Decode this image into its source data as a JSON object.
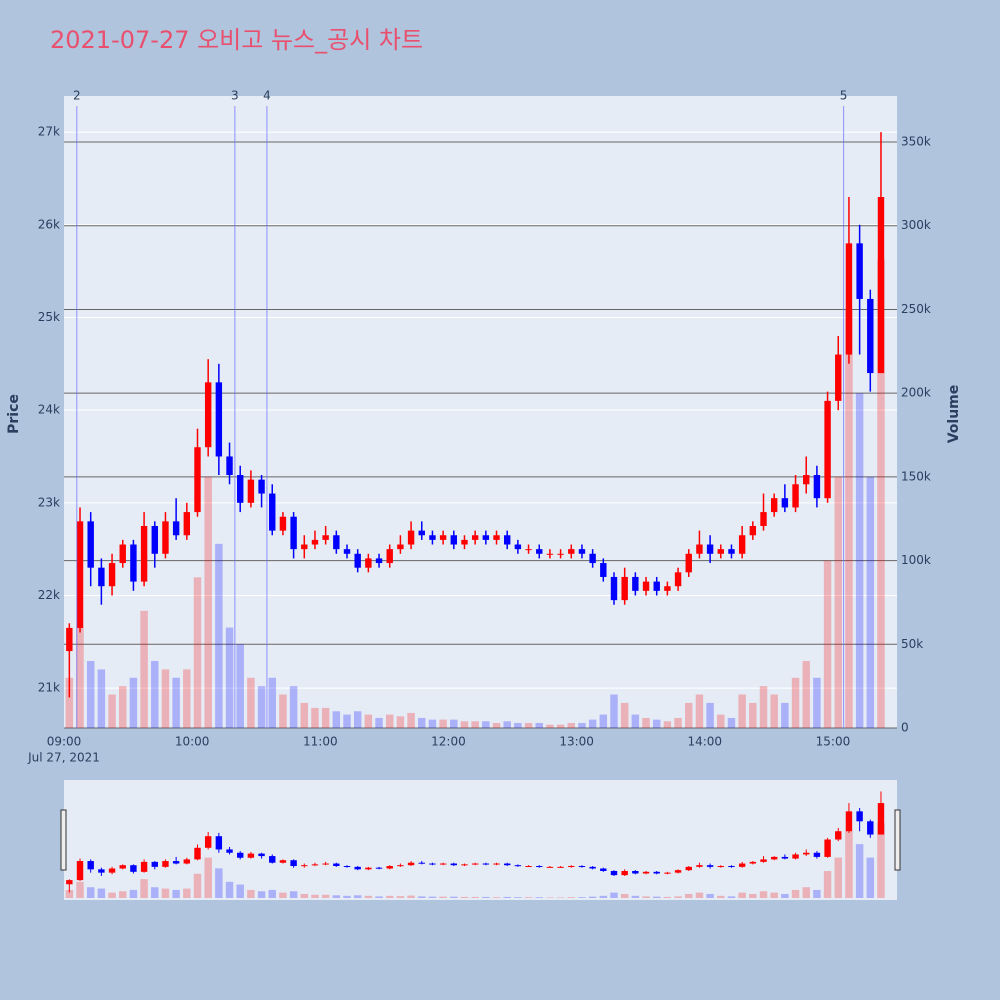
{
  "chart_data": {
    "type": "candlestick",
    "title": "2021-07-27 오비고 뉴스_공시 차트",
    "y_title": "Price",
    "y2_title": "Volume",
    "x_date": "Jul 27, 2021",
    "x": [
      "09:00",
      "09:05",
      "09:10",
      "09:15",
      "09:20",
      "09:25",
      "09:30",
      "09:35",
      "09:40",
      "09:45",
      "09:50",
      "09:55",
      "10:00",
      "10:05",
      "10:10",
      "10:15",
      "10:20",
      "10:25",
      "10:30",
      "10:35",
      "10:40",
      "10:45",
      "10:50",
      "10:55",
      "11:00",
      "11:05",
      "11:10",
      "11:15",
      "11:20",
      "11:25",
      "11:30",
      "11:35",
      "11:40",
      "11:45",
      "11:50",
      "11:55",
      "12:00",
      "12:05",
      "12:10",
      "12:15",
      "12:20",
      "12:25",
      "12:30",
      "12:35",
      "12:40",
      "12:45",
      "12:50",
      "12:55",
      "13:00",
      "13:05",
      "13:10",
      "13:15",
      "13:20",
      "13:25",
      "13:30",
      "13:35",
      "13:40",
      "13:45",
      "13:50",
      "13:55",
      "14:00",
      "14:05",
      "14:10",
      "14:15",
      "14:20",
      "14:25",
      "14:30",
      "14:35",
      "14:40",
      "14:45",
      "14:50",
      "14:55",
      "15:00",
      "15:05",
      "15:10",
      "15:15",
      "15:20"
    ],
    "open": [
      21400,
      21650,
      22800,
      22300,
      22100,
      22350,
      22550,
      22150,
      22750,
      22450,
      22800,
      22650,
      22900,
      23600,
      24300,
      23500,
      23300,
      23000,
      23250,
      23100,
      22700,
      22850,
      22500,
      22550,
      22600,
      22650,
      22500,
      22450,
      22300,
      22400,
      22350,
      22500,
      22550,
      22700,
      22650,
      22600,
      22650,
      22550,
      22600,
      22650,
      22600,
      22650,
      22550,
      22500,
      22500,
      22450,
      22450,
      22450,
      22500,
      22450,
      22350,
      22200,
      21950,
      22200,
      22050,
      22150,
      22050,
      22100,
      22250,
      22450,
      22550,
      22450,
      22500,
      22450,
      22650,
      22750,
      22900,
      23050,
      22950,
      23200,
      23300,
      23050,
      24100,
      24600,
      25800,
      25200,
      24400
    ],
    "high": [
      21700,
      22950,
      22900,
      22400,
      22450,
      22600,
      22600,
      22900,
      22800,
      22900,
      23050,
      23000,
      23800,
      24550,
      24500,
      23650,
      23400,
      23350,
      23300,
      23200,
      22900,
      22900,
      22650,
      22700,
      22750,
      22700,
      22550,
      22500,
      22450,
      22450,
      22550,
      22650,
      22800,
      22800,
      22700,
      22700,
      22700,
      22650,
      22700,
      22700,
      22700,
      22700,
      22600,
      22550,
      22550,
      22500,
      22500,
      22550,
      22550,
      22500,
      22400,
      22250,
      22300,
      22250,
      22200,
      22200,
      22150,
      22300,
      22500,
      22700,
      22650,
      22550,
      22550,
      22750,
      22800,
      23100,
      23100,
      23200,
      23300,
      23500,
      23400,
      24200,
      24800,
      26300,
      26000,
      25300,
      27000
    ],
    "low": [
      20900,
      21600,
      22100,
      21900,
      22000,
      22300,
      22050,
      22100,
      22300,
      22400,
      22600,
      22600,
      22850,
      23500,
      23300,
      23200,
      22900,
      22950,
      22950,
      22650,
      22650,
      22400,
      22400,
      22500,
      22550,
      22450,
      22400,
      22250,
      22250,
      22300,
      22300,
      22450,
      22500,
      22600,
      22550,
      22550,
      22500,
      22500,
      22550,
      22550,
      22550,
      22500,
      22450,
      22450,
      22400,
      22400,
      22400,
      22400,
      22400,
      22300,
      22150,
      21900,
      21900,
      22000,
      22000,
      22000,
      22000,
      22050,
      22200,
      22400,
      22350,
      22400,
      22400,
      22400,
      22600,
      22700,
      22850,
      22900,
      22900,
      23100,
      22950,
      23000,
      24000,
      24500,
      24600,
      24200,
      24400
    ],
    "close": [
      21650,
      22800,
      22300,
      22100,
      22350,
      22550,
      22150,
      22750,
      22450,
      22800,
      22650,
      22900,
      23600,
      24300,
      23500,
      23300,
      23000,
      23250,
      23100,
      22700,
      22850,
      22500,
      22550,
      22600,
      22650,
      22500,
      22450,
      22300,
      22400,
      22350,
      22500,
      22550,
      22700,
      22650,
      22600,
      22650,
      22550,
      22600,
      22650,
      22600,
      22650,
      22550,
      22500,
      22500,
      22450,
      22450,
      22450,
      22500,
      22450,
      22350,
      22200,
      21950,
      22200,
      22050,
      22150,
      22050,
      22100,
      22250,
      22450,
      22550,
      22450,
      22500,
      22450,
      22650,
      22750,
      22900,
      23050,
      22950,
      23200,
      23300,
      23050,
      24100,
      24600,
      25800,
      25200,
      24400,
      26300
    ],
    "volume": [
      30000,
      60000,
      40000,
      35000,
      20000,
      25000,
      30000,
      70000,
      40000,
      35000,
      30000,
      35000,
      90000,
      150000,
      110000,
      60000,
      50000,
      30000,
      25000,
      30000,
      20000,
      25000,
      15000,
      12000,
      12000,
      10000,
      8000,
      10000,
      8000,
      6000,
      8000,
      7000,
      9000,
      6000,
      5000,
      5000,
      5000,
      4000,
      4000,
      4000,
      3000,
      4000,
      3000,
      3000,
      3000,
      2000,
      2000,
      3000,
      3000,
      5000,
      8000,
      20000,
      15000,
      8000,
      6000,
      5000,
      4000,
      6000,
      15000,
      20000,
      15000,
      8000,
      6000,
      20000,
      15000,
      25000,
      20000,
      15000,
      30000,
      40000,
      30000,
      100000,
      150000,
      250000,
      200000,
      150000,
      280000
    ],
    "up_color": "#ff0000",
    "down_color": "#0000ff",
    "xlim": [
      "09:00",
      "15:30"
    ],
    "xticks": [
      "09:00",
      "10:00",
      "11:00",
      "12:00",
      "13:00",
      "14:00",
      "15:00"
    ],
    "ylim": [
      20570,
      27390
    ],
    "yticks": [
      {
        "value": 21000,
        "label": "21k"
      },
      {
        "value": 22000,
        "label": "22k"
      },
      {
        "value": 23000,
        "label": "23k"
      },
      {
        "value": 24000,
        "label": "24k"
      },
      {
        "value": 25000,
        "label": "25k"
      },
      {
        "value": 26000,
        "label": "26k"
      },
      {
        "value": 27000,
        "label": "27k"
      }
    ],
    "y2lim": [
      0,
      377500
    ],
    "y2ticks": [
      0,
      {
        "value": 50000,
        "label": "50k"
      },
      {
        "value": 100000,
        "label": "100k"
      },
      {
        "value": 150000,
        "label": "150k"
      },
      {
        "value": 200000,
        "label": "200k"
      },
      {
        "value": 250000,
        "label": "250k"
      },
      {
        "value": 300000,
        "label": "300k"
      },
      {
        "value": 350000,
        "label": "350k"
      }
    ],
    "annotations": [
      {
        "x": "09:06",
        "text": "2"
      },
      {
        "x": "10:20",
        "text": "3"
      },
      {
        "x": "10:35",
        "text": "4"
      },
      {
        "x": "15:05",
        "text": "5"
      }
    ],
    "rangeslider": true
  }
}
